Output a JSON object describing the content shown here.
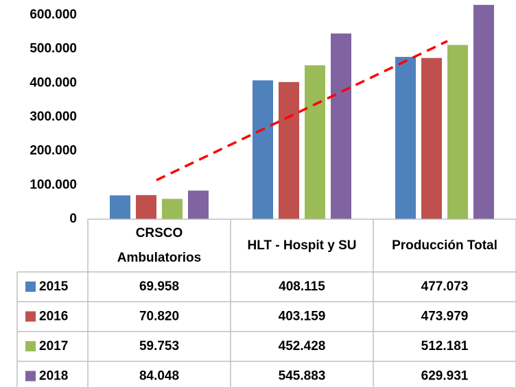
{
  "chart_data": {
    "type": "bar",
    "categories": [
      "CRSCO Ambulatorios",
      "HLT - Hospit y SU",
      "Producción Total"
    ],
    "series": [
      {
        "name": "2015",
        "color": "#4f81bd",
        "values": [
          69958,
          408115,
          477073
        ],
        "value_labels": [
          "69.958",
          "408.115",
          "477.073"
        ]
      },
      {
        "name": "2016",
        "color": "#c0504d",
        "values": [
          70820,
          403159,
          473979
        ],
        "value_labels": [
          "70.820",
          "403.159",
          "473.979"
        ]
      },
      {
        "name": "2017",
        "color": "#9bbb59",
        "values": [
          59753,
          452428,
          512181
        ],
        "value_labels": [
          "59.753",
          "452.428",
          "512.181"
        ]
      },
      {
        "name": "2018",
        "color": "#8064a2",
        "values": [
          84048,
          545883,
          629931
        ],
        "value_labels": [
          "84.048",
          "545.883",
          "629.931"
        ]
      }
    ],
    "ylim": [
      0,
      600000
    ],
    "yticks": [
      0,
      {
        "value": 100000,
        "label": "100.000"
      },
      {
        "value": 200000,
        "label": "200.000"
      },
      {
        "value": 300000,
        "label": "300.000"
      },
      {
        "value": 400000,
        "label": "400.000"
      },
      {
        "value": 500000,
        "label": "500.000"
      },
      {
        "value": 600000,
        "label": "600.000"
      }
    ],
    "grid": false,
    "legend": "table"
  }
}
